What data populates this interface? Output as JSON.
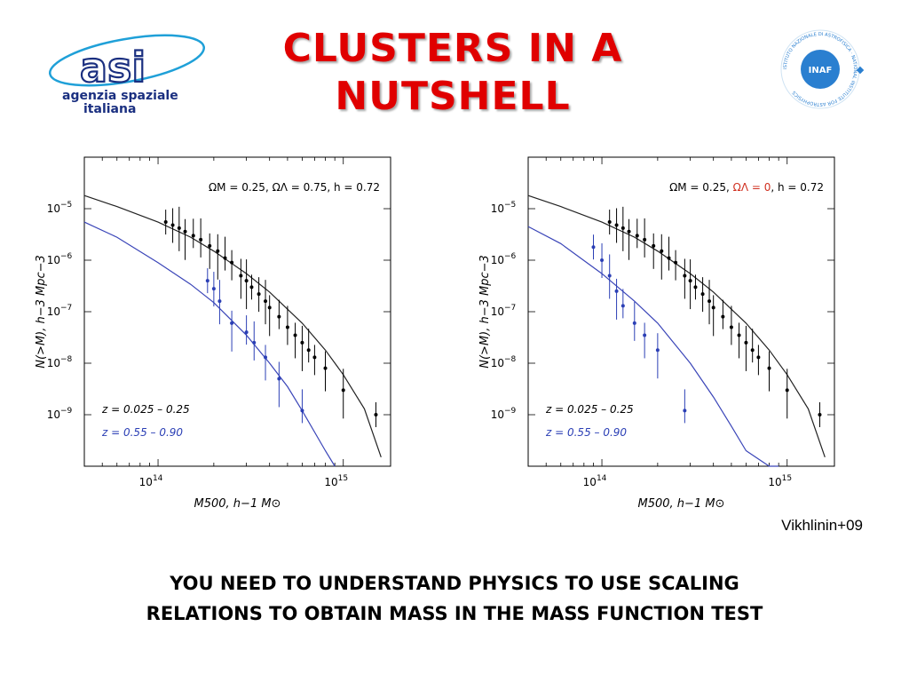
{
  "slide": {
    "title_line1": "CLUSTERS IN A",
    "title_line2": "NUTSHELL",
    "credit": "Vikhlinin+09",
    "bottom_line1": "YOU NEED TO UNDERSTAND PHYSICS TO USE SCALING",
    "bottom_line2": "RELATIONS TO OBTAIN MASS IN THE MASS FUNCTION TEST",
    "title_color": "#e00000"
  },
  "logos": {
    "asi": {
      "word": "asi",
      "line1": "agenzia spaziale",
      "line2": "italiana",
      "color": "#1a2f80"
    },
    "inaf": {
      "word": "INAF",
      "ring_text": "ISTITUTO NAZIONALE DI ASTROFISICA · NATIONAL INSTITUTE FOR ASTROPHYSICS",
      "color": "#2a7fd0"
    }
  },
  "chart_data": [
    {
      "type": "scatter",
      "xscale": "log",
      "yscale": "log",
      "xlim": [
        40000000000000,
        1800000000000000
      ],
      "ylim": [
        1e-10,
        0.0001
      ],
      "xticks": [
        {
          "v": 100000000000000,
          "base": "10",
          "exp": "14"
        },
        {
          "v": 1000000000000000,
          "base": "10",
          "exp": "15"
        }
      ],
      "yticks": [
        {
          "v": 1e-05,
          "base": "10",
          "exp": "−5"
        },
        {
          "v": 1e-06,
          "base": "10",
          "exp": "−6"
        },
        {
          "v": 1e-07,
          "base": "10",
          "exp": "−7"
        },
        {
          "v": 1e-08,
          "base": "10",
          "exp": "−8"
        },
        {
          "v": 1e-09,
          "base": "10",
          "exp": "−9"
        }
      ],
      "xlabel": "M500,  h−1 M⊙",
      "ylabel": "N(>M),  h−3 Mpc−3",
      "cosmo_parts": [
        {
          "text": "ΩM = 0.25,  ",
          "color": "#000000"
        },
        {
          "text": "ΩΛ = 0.75",
          "color": "#000000"
        },
        {
          "text": ",  h = 0.72",
          "color": "#000000"
        }
      ],
      "legend": [
        "z = 0.025 – 0.25",
        "z = 0.55 – 0.90"
      ],
      "series": [
        {
          "name": "z = 0.025 – 0.25",
          "color": "#000000",
          "kind": "data",
          "x": [
            110000000000000,
            120000000000000,
            130000000000000,
            140000000000000,
            155000000000000,
            170000000000000,
            190000000000000,
            210000000000000,
            230000000000000,
            250000000000000,
            280000000000000,
            300000000000000,
            320000000000000,
            350000000000000,
            380000000000000,
            400000000000000,
            450000000000000,
            500000000000000,
            550000000000000,
            600000000000000,
            650000000000000,
            700000000000000,
            800000000000000,
            1000000000000000,
            1500000000000000
          ],
          "y": [
            5.5e-06,
            4.8e-06,
            4.2e-06,
            3.6e-06,
            3e-06,
            2.5e-06,
            1.9e-06,
            1.5e-06,
            1.1e-06,
            9e-07,
            5e-07,
            4e-07,
            3e-07,
            2.2e-07,
            1.6e-07,
            1.2e-07,
            8e-08,
            5e-08,
            3.5e-08,
            2.5e-08,
            1.8e-08,
            1.3e-08,
            8e-09,
            3e-09,
            1e-09
          ]
        },
        {
          "name": "z = 0.55 – 0.90",
          "color": "#2b3fb5",
          "kind": "data",
          "x": [
            185000000000000,
            200000000000000,
            215000000000000,
            250000000000000,
            300000000000000,
            330000000000000,
            380000000000000,
            450000000000000,
            600000000000000
          ],
          "y": [
            4e-07,
            2.8e-07,
            1.6e-07,
            6e-08,
            4e-08,
            2.5e-08,
            1.3e-08,
            5e-09,
            1.2e-09
          ]
        },
        {
          "name": "model low-z",
          "color": "#222222",
          "kind": "curve",
          "x": [
            40000000000000,
            60000000000000,
            100000000000000,
            150000000000000,
            200000000000000,
            300000000000000,
            400000000000000,
            600000000000000,
            800000000000000,
            1000000000000000,
            1300000000000000,
            1600000000000000
          ],
          "y": [
            1.8e-05,
            1.1e-05,
            5.5e-06,
            2.8e-06,
            1.5e-06,
            5.5e-07,
            2.4e-07,
            6e-08,
            1.8e-08,
            6e-09,
            1.3e-09,
            1.5e-10
          ]
        },
        {
          "name": "model high-z",
          "color": "#3a45b8",
          "kind": "curve",
          "x": [
            40000000000000,
            60000000000000,
            100000000000000,
            150000000000000,
            200000000000000,
            300000000000000,
            400000000000000,
            500000000000000,
            600000000000000,
            800000000000000,
            900000000000000
          ],
          "y": [
            5.5e-06,
            2.8e-06,
            9e-07,
            3.4e-07,
            1.5e-07,
            3.5e-08,
            1e-08,
            3.5e-09,
            1.2e-09,
            2e-10,
            1e-10
          ]
        }
      ]
    },
    {
      "type": "scatter",
      "xscale": "log",
      "yscale": "log",
      "xlim": [
        40000000000000,
        1800000000000000
      ],
      "ylim": [
        1e-10,
        0.0001
      ],
      "xticks": [
        {
          "v": 100000000000000,
          "base": "10",
          "exp": "14"
        },
        {
          "v": 1000000000000000,
          "base": "10",
          "exp": "15"
        }
      ],
      "yticks": [
        {
          "v": 1e-05,
          "base": "10",
          "exp": "−5"
        },
        {
          "v": 1e-06,
          "base": "10",
          "exp": "−6"
        },
        {
          "v": 1e-07,
          "base": "10",
          "exp": "−7"
        },
        {
          "v": 1e-08,
          "base": "10",
          "exp": "−8"
        },
        {
          "v": 1e-09,
          "base": "10",
          "exp": "−9"
        }
      ],
      "xlabel": "M500,  h−1 M⊙",
      "ylabel": "N(>M),  h−3 Mpc−3",
      "cosmo_parts": [
        {
          "text": "ΩM = 0.25,  ",
          "color": "#000000"
        },
        {
          "text": "ΩΛ = 0",
          "color": "#d03020"
        },
        {
          "text": ",  h = 0.72",
          "color": "#000000"
        }
      ],
      "legend": [
        "z = 0.025 – 0.25",
        "z = 0.55 – 0.90"
      ],
      "series": [
        {
          "name": "z = 0.025 – 0.25",
          "color": "#000000",
          "kind": "data",
          "x": [
            110000000000000,
            120000000000000,
            130000000000000,
            140000000000000,
            155000000000000,
            170000000000000,
            190000000000000,
            210000000000000,
            230000000000000,
            250000000000000,
            280000000000000,
            300000000000000,
            320000000000000,
            350000000000000,
            380000000000000,
            400000000000000,
            450000000000000,
            500000000000000,
            550000000000000,
            600000000000000,
            650000000000000,
            700000000000000,
            800000000000000,
            1000000000000000,
            1500000000000000
          ],
          "y": [
            5.5e-06,
            4.8e-06,
            4.2e-06,
            3.6e-06,
            3e-06,
            2.5e-06,
            1.9e-06,
            1.5e-06,
            1.1e-06,
            9e-07,
            5e-07,
            4e-07,
            3e-07,
            2.2e-07,
            1.6e-07,
            1.2e-07,
            8e-08,
            5e-08,
            3.5e-08,
            2.5e-08,
            1.8e-08,
            1.3e-08,
            8e-09,
            3e-09,
            1e-09
          ]
        },
        {
          "name": "z = 0.55 – 0.90",
          "color": "#2b3fb5",
          "kind": "data",
          "x": [
            90000000000000,
            100000000000000,
            110000000000000,
            120000000000000,
            130000000000000,
            150000000000000,
            170000000000000,
            200000000000000,
            280000000000000
          ],
          "y": [
            1.8e-06,
            1e-06,
            5e-07,
            2.5e-07,
            1.3e-07,
            6e-08,
            3.5e-08,
            1.8e-08,
            1.2e-09
          ]
        },
        {
          "name": "model low-z",
          "color": "#222222",
          "kind": "curve",
          "x": [
            40000000000000,
            60000000000000,
            100000000000000,
            150000000000000,
            200000000000000,
            300000000000000,
            400000000000000,
            600000000000000,
            800000000000000,
            1000000000000000,
            1300000000000000,
            1600000000000000
          ],
          "y": [
            1.8e-05,
            1.1e-05,
            5.5e-06,
            2.8e-06,
            1.5e-06,
            5.5e-07,
            2.4e-07,
            6e-08,
            1.8e-08,
            6e-09,
            1.3e-09,
            1.5e-10
          ]
        },
        {
          "name": "model high-z",
          "color": "#3a45b8",
          "kind": "curve",
          "x": [
            40000000000000,
            60000000000000,
            100000000000000,
            150000000000000,
            200000000000000,
            300000000000000,
            400000000000000,
            500000000000000,
            600000000000000,
            800000000000000,
            900000000000000
          ],
          "y": [
            4.5e-06,
            2.1e-06,
            5.5e-07,
            1.6e-07,
            6e-08,
            1e-08,
            2.2e-09,
            6e-10,
            2e-10,
            1e-10,
            1e-10
          ]
        }
      ]
    }
  ]
}
